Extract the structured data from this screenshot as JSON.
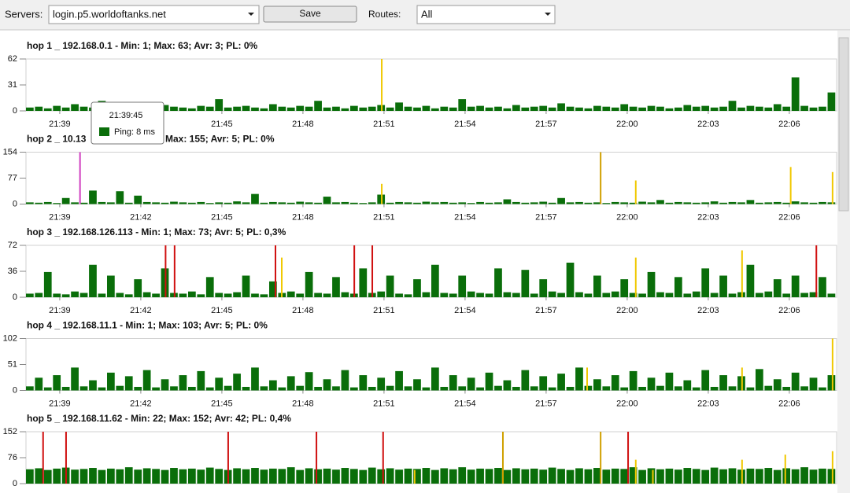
{
  "toolbar": {
    "servers_label": "Servers:",
    "server": "login.p5.worldoftanks.net",
    "save": "Save",
    "routes_label": "Routes:",
    "route": "All"
  },
  "tooltip": {
    "time": "21:39:45",
    "text": "Ping: 8 ms",
    "color": "#0a6e0a"
  },
  "chart_data": [
    {
      "type": "bar",
      "title": "hop 1 _ 192.168.0.1 - Min: 1; Max: 63; Avr: 3; PL: 0%",
      "color": "#0a6e0a",
      "xlim": [
        "21:37:45",
        "22:07:45"
      ],
      "xticks": [
        "21:39",
        "21:42",
        "21:45",
        "21:48",
        "21:51",
        "21:54",
        "21:57",
        "22:00",
        "22:03",
        "22:06"
      ],
      "ylim": [
        0,
        62
      ],
      "yticks": [
        0,
        31,
        62
      ],
      "values": [
        4,
        5,
        3,
        6,
        4,
        8,
        5,
        4,
        12,
        5,
        4,
        6,
        3,
        5,
        4,
        7,
        5,
        4,
        3,
        6,
        5,
        14,
        4,
        5,
        6,
        4,
        3,
        8,
        5,
        4,
        6,
        5,
        12,
        4,
        5,
        3,
        6,
        4,
        5,
        7,
        4,
        10,
        5,
        4,
        6,
        3,
        5,
        4,
        14,
        5,
        6,
        4,
        5,
        3,
        7,
        4,
        5,
        6,
        4,
        9,
        5,
        4,
        3,
        6,
        5,
        4,
        8,
        5,
        4,
        6,
        5,
        3,
        4,
        7,
        5,
        6,
        4,
        5,
        12,
        4,
        6,
        5,
        4,
        8,
        5,
        40,
        6,
        4,
        5,
        22
      ],
      "markers": [
        {
          "x": "21:50:55",
          "value": 62,
          "color": "#f0c800"
        }
      ]
    },
    {
      "type": "bar",
      "title": "hop 2 _ 10.13",
      "title_end": "Max: 155; Avr: 5; PL: 0%",
      "color": "#0a6e0a",
      "xlim": [
        "21:37:45",
        "22:07:45"
      ],
      "xticks": [
        "21:39",
        "21:42",
        "21:45",
        "21:48",
        "21:51",
        "21:54",
        "21:57",
        "22:00",
        "22:03",
        "22:06"
      ],
      "ylim": [
        0,
        154
      ],
      "yticks": [
        0,
        77,
        154
      ],
      "values": [
        5,
        4,
        6,
        3,
        18,
        5,
        4,
        40,
        6,
        5,
        38,
        4,
        25,
        6,
        5,
        4,
        7,
        5,
        4,
        6,
        3,
        5,
        4,
        8,
        5,
        30,
        4,
        6,
        5,
        4,
        7,
        5,
        4,
        22,
        5,
        6,
        4,
        3,
        5,
        28,
        4,
        6,
        5,
        4,
        7,
        5,
        6,
        4,
        5,
        3,
        6,
        4,
        5,
        14,
        6,
        4,
        5,
        7,
        4,
        18,
        5,
        6,
        4,
        5,
        3,
        6,
        5,
        4,
        7,
        5,
        12,
        4,
        6,
        5,
        4,
        5,
        8,
        4,
        6,
        5,
        12,
        4,
        5,
        6,
        4,
        8,
        5,
        4,
        6,
        5
      ],
      "markers": [
        {
          "x": "21:39:45",
          "value": 154,
          "color": "#d040c0"
        },
        {
          "x": "21:50:55",
          "value": 60,
          "color": "#f0c800"
        },
        {
          "x": "21:59:01",
          "value": 154,
          "color": "#d0a000"
        },
        {
          "x": "22:00:19",
          "value": 70,
          "color": "#f0c800"
        },
        {
          "x": "22:06:03",
          "value": 110,
          "color": "#f0c800"
        },
        {
          "x": "22:07:36",
          "value": 95,
          "color": "#f0c800"
        }
      ]
    },
    {
      "type": "bar",
      "title": "hop 3 _ 192.168.126.113 - Min: 1; Max: 73; Avr: 5; PL: 0,3%",
      "color": "#0a6e0a",
      "xlim": [
        "21:37:45",
        "22:07:45"
      ],
      "xticks": [
        "21:39",
        "21:42",
        "21:45",
        "21:48",
        "21:51",
        "21:54",
        "21:57",
        "22:00",
        "22:03",
        "22:06"
      ],
      "ylim": [
        0,
        72
      ],
      "yticks": [
        0,
        36,
        72
      ],
      "values": [
        5,
        6,
        35,
        5,
        4,
        8,
        6,
        45,
        5,
        30,
        6,
        4,
        25,
        7,
        5,
        40,
        6,
        5,
        8,
        4,
        28,
        6,
        5,
        7,
        30,
        5,
        4,
        22,
        6,
        8,
        5,
        35,
        6,
        5,
        28,
        7,
        5,
        40,
        6,
        8,
        30,
        5,
        4,
        25,
        7,
        45,
        6,
        5,
        30,
        8,
        6,
        5,
        40,
        7,
        6,
        38,
        5,
        25,
        8,
        6,
        48,
        7,
        5,
        30,
        6,
        8,
        25,
        6,
        5,
        35,
        7,
        6,
        28,
        5,
        8,
        40,
        6,
        30,
        5,
        7,
        45,
        6,
        8,
        25,
        5,
        30,
        6,
        7,
        28,
        5
      ],
      "markers": [
        {
          "x": "21:42:55",
          "value": 72,
          "color": "#d01010"
        },
        {
          "x": "21:43:15",
          "value": 72,
          "color": "#d01010"
        },
        {
          "x": "21:46:59",
          "value": 72,
          "color": "#d01010"
        },
        {
          "x": "21:47:13",
          "value": 55,
          "color": "#f0c800"
        },
        {
          "x": "21:49:54",
          "value": 72,
          "color": "#d01010"
        },
        {
          "x": "21:50:34",
          "value": 72,
          "color": "#d01010"
        },
        {
          "x": "22:00:19",
          "value": 55,
          "color": "#f0c800"
        },
        {
          "x": "22:04:15",
          "value": 65,
          "color": "#f0c800"
        },
        {
          "x": "22:07:00",
          "value": 72,
          "color": "#d01010"
        }
      ]
    },
    {
      "type": "bar",
      "title": "hop 4 _ 192.168.11.1 - Min: 1; Max: 103; Avr: 5; PL: 0%",
      "color": "#0a6e0a",
      "xlim": [
        "21:37:45",
        "22:07:45"
      ],
      "xticks": [
        "21:39",
        "21:42",
        "21:45",
        "21:48",
        "21:51",
        "21:54",
        "21:57",
        "22:00",
        "22:03",
        "22:06"
      ],
      "ylim": [
        0,
        102
      ],
      "yticks": [
        0,
        51,
        102
      ],
      "values": [
        8,
        25,
        6,
        30,
        7,
        45,
        8,
        20,
        6,
        35,
        9,
        28,
        7,
        40,
        6,
        22,
        8,
        30,
        7,
        38,
        6,
        25,
        9,
        33,
        7,
        45,
        8,
        20,
        6,
        28,
        9,
        36,
        7,
        22,
        8,
        40,
        6,
        30,
        7,
        25,
        9,
        38,
        8,
        22,
        6,
        45,
        7,
        30,
        8,
        25,
        6,
        35,
        9,
        20,
        7,
        40,
        8,
        28,
        6,
        33,
        7,
        45,
        9,
        22,
        8,
        30,
        6,
        38,
        7,
        25,
        9,
        35,
        8,
        20,
        6,
        40,
        7,
        30,
        8,
        28,
        6,
        42,
        9,
        22,
        7,
        35,
        8,
        25,
        6,
        30
      ],
      "markers": [
        {
          "x": "21:58:31",
          "value": 45,
          "color": "#f0c800"
        },
        {
          "x": "22:04:15",
          "value": 45,
          "color": "#f0c800"
        },
        {
          "x": "22:07:36",
          "value": 102,
          "color": "#f0c800"
        }
      ]
    },
    {
      "type": "bar",
      "title": "hop 5 _ 192.168.11.62 - Min: 22; Max: 152; Avr: 42; PL: 0,4%",
      "color": "#0a6e0a",
      "xlim": [
        "21:37:45",
        "22:07:45"
      ],
      "ylim": [
        0,
        152
      ],
      "yticks": [
        0,
        76,
        152
      ],
      "values": [
        42,
        45,
        40,
        44,
        47,
        41,
        43,
        46,
        40,
        44,
        42,
        48,
        41,
        45,
        43,
        40,
        46,
        42,
        44,
        41,
        47,
        43,
        40,
        45,
        42,
        46,
        41,
        44,
        43,
        48,
        40,
        45,
        42,
        44,
        41,
        46,
        43,
        40,
        47,
        42,
        45,
        41,
        44,
        43,
        46,
        40,
        45,
        42,
        48,
        41,
        44,
        43,
        46,
        40,
        45,
        42,
        44,
        41,
        47,
        43,
        40,
        45,
        42,
        46,
        41,
        44,
        43,
        48,
        40,
        45,
        42,
        44,
        41,
        46,
        43,
        40,
        47,
        42,
        45,
        41,
        44,
        43,
        46,
        40,
        45,
        42,
        48,
        41,
        44,
        43
      ],
      "markers": [
        {
          "x": "21:38:23",
          "value": 152,
          "color": "#d01010"
        },
        {
          "x": "21:39:14",
          "value": 152,
          "color": "#d01010"
        },
        {
          "x": "21:45:14",
          "value": 152,
          "color": "#d01010"
        },
        {
          "x": "21:48:30",
          "value": 152,
          "color": "#d01010"
        },
        {
          "x": "21:50:58",
          "value": 152,
          "color": "#d01010"
        },
        {
          "x": "21:52:08",
          "value": 40,
          "color": "#f0c800"
        },
        {
          "x": "21:55:24",
          "value": 152,
          "color": "#d0a000"
        },
        {
          "x": "21:59:01",
          "value": 152,
          "color": "#d0a000"
        },
        {
          "x": "22:00:02",
          "value": 152,
          "color": "#d01010"
        },
        {
          "x": "22:00:19",
          "value": 70,
          "color": "#f0c800"
        },
        {
          "x": "22:00:57",
          "value": 40,
          "color": "#f0c800"
        },
        {
          "x": "22:04:15",
          "value": 70,
          "color": "#f0c800"
        },
        {
          "x": "22:05:51",
          "value": 85,
          "color": "#f0c800"
        },
        {
          "x": "22:07:36",
          "value": 95,
          "color": "#f0c800"
        }
      ]
    }
  ]
}
